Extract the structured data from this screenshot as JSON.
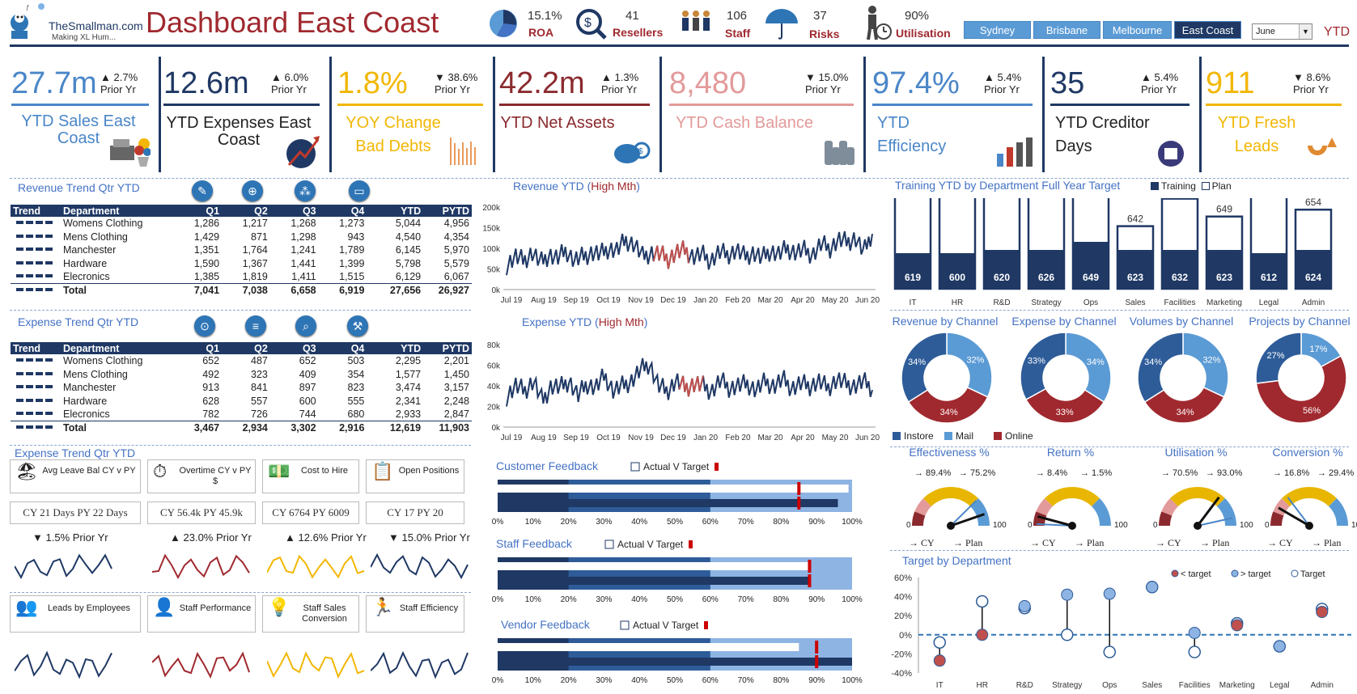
{
  "header": {
    "logo_brand": "TheSmallman.com",
    "logo_tag": "Making XL Hum...",
    "title": "Dashboard East Coast",
    "stats": [
      {
        "value": "15.1%",
        "label": "ROA",
        "icon": "pie-icon"
      },
      {
        "value": "41",
        "label": "Resellers",
        "icon": "magnifier-icon"
      },
      {
        "value": "106",
        "label": "Staff",
        "icon": "people-icon"
      },
      {
        "value": "37",
        "label": "Risks",
        "icon": "umbrella-icon"
      },
      {
        "value": "90%",
        "label": "Utilisation",
        "icon": "worker-clock-icon"
      }
    ],
    "regions": [
      "Sydney",
      "Brisbane",
      "Melbourne",
      "East Coast"
    ],
    "active_region": "East Coast",
    "month": "June",
    "period": "YTD"
  },
  "kpis": [
    {
      "value": "27.7m",
      "arrow": "▲",
      "change": "2.7%",
      "cmp": "Prior Yr",
      "label": "YTD Sales East Coast",
      "color": "#4a86c8",
      "icon": "cash-register-icon"
    },
    {
      "value": "12.6m",
      "arrow": "▲",
      "change": "6.0%",
      "cmp": "Prior Yr",
      "label": "YTD Expenses East Coast",
      "color": "#1f3864",
      "icon": "rocket-icon"
    },
    {
      "value": "1.8%",
      "arrow": "▼",
      "change": "38.6%",
      "cmp": "Prior Yr",
      "label": "YOY Change Bad Debts",
      "color": "#f2b705",
      "icon": "bars-icon"
    },
    {
      "value": "42.2m",
      "arrow": "▲",
      "change": "1.3%",
      "cmp": "Prior Yr",
      "label": "YTD Net Assets",
      "color": "#8b2a2e",
      "icon": "piggy-bank-icon"
    },
    {
      "value": "8,480",
      "arrow": "▼",
      "change": "15.0%",
      "cmp": "Prior Yr",
      "label": "YTD Cash Balance",
      "color": "#e39a9a",
      "icon": "coins-icon"
    },
    {
      "value": "97.4%",
      "arrow": "▲",
      "change": "5.4%",
      "cmp": "Prior Yr",
      "label": "YTD Efficiency",
      "color": "#4a86c8",
      "icon": "growth-people-icon"
    },
    {
      "value": "35",
      "arrow": "▲",
      "change": "5.4%",
      "cmp": "Prior Yr",
      "label": "YTD Creditor Days",
      "color": "#1f3864",
      "icon": "calendar-icon"
    },
    {
      "value": "911",
      "arrow": "▼",
      "change": "8.6%",
      "cmp": "Prior Yr",
      "label": "YTD Fresh Leads",
      "color": "#f2b705",
      "icon": "magnet-icon"
    }
  ],
  "revenue_table": {
    "title": "Revenue Trend Qtr YTD",
    "headers": [
      "Trend",
      "Department",
      "Q1",
      "Q2",
      "Q3",
      "Q4",
      "YTD",
      "PYTD"
    ],
    "rows": [
      [
        "Womens Clothing",
        "1,286",
        "1,217",
        "1,268",
        "1,273",
        "5,044",
        "4,956"
      ],
      [
        "Mens Clothing",
        "1,429",
        "871",
        "1,298",
        "943",
        "4,540",
        "4,354"
      ],
      [
        "Manchester",
        "1,351",
        "1,764",
        "1,241",
        "1,789",
        "6,145",
        "5,970"
      ],
      [
        "Hardware",
        "1,590",
        "1,367",
        "1,441",
        "1,399",
        "5,798",
        "5,579"
      ],
      [
        "Elecronics",
        "1,385",
        "1,819",
        "1,411",
        "1,515",
        "6,129",
        "6,067"
      ]
    ],
    "total": [
      "Total",
      "7,041",
      "7,038",
      "6,658",
      "6,919",
      "27,656",
      "26,927"
    ]
  },
  "expense_table": {
    "title": "Expense Trend Qtr YTD",
    "headers": [
      "Trend",
      "Department",
      "Q1",
      "Q2",
      "Q3",
      "Q4",
      "YTD",
      "PYTD"
    ],
    "rows": [
      [
        "Womens Clothing",
        "652",
        "487",
        "652",
        "503",
        "2,295",
        "2,201"
      ],
      [
        "Mens Clothing",
        "492",
        "323",
        "409",
        "354",
        "1,577",
        "1,450"
      ],
      [
        "Manchester",
        "913",
        "841",
        "897",
        "823",
        "3,474",
        "3,157"
      ],
      [
        "Hardware",
        "628",
        "557",
        "600",
        "555",
        "2,341",
        "2,248"
      ],
      [
        "Elecronics",
        "782",
        "726",
        "744",
        "680",
        "2,933",
        "2,847"
      ]
    ],
    "total": [
      "Total",
      "3,467",
      "2,934",
      "3,302",
      "2,916",
      "12,619",
      "11,903"
    ]
  },
  "revenue_ytd": {
    "title": "Revenue YTD",
    "title_hl": "High Mth",
    "yticks": [
      "200k",
      "150k",
      "100k",
      "50k",
      "0k"
    ],
    "xticks": [
      "Jul 19",
      "Aug 19",
      "Sep 19",
      "Oct 19",
      "Nov 19",
      "Dec 19",
      "Jan 20",
      "Feb 20",
      "Mar 20",
      "Apr 20",
      "May 20",
      "Jun 20"
    ]
  },
  "expense_ytd": {
    "title": "Expense YTD",
    "title_hl": "High Mth",
    "yticks": [
      "80k",
      "60k",
      "40k",
      "20k",
      "0k"
    ],
    "xticks": [
      "Jul 19",
      "Aug 19",
      "Sep 19",
      "Oct 19",
      "Nov 19",
      "Dec 19",
      "Jan 20",
      "Feb 20",
      "Mar 20",
      "Apr 20",
      "May 20",
      "Jun 20"
    ]
  },
  "training": {
    "title": "Training YTD by Department Full Year Target",
    "legend": [
      "Training",
      "Plan"
    ]
  },
  "channels": {
    "titles": [
      "Revenue by Channel",
      "Expense by Channel",
      "Volumes by Channel",
      "Projects by Channel"
    ],
    "legend": [
      "Instore",
      "Mail",
      "Online"
    ]
  },
  "gauges": [
    {
      "title": "Effectiveness %",
      "cy": "89.4%",
      "plan": "75.2%"
    },
    {
      "title": "Return %",
      "cy": "8.4%",
      "plan": "1.5%"
    },
    {
      "title": "Utilisation %",
      "cy": "70.5%",
      "plan": "93.0%"
    },
    {
      "title": "Conversion %",
      "cy": "16.8%",
      "plan": "29.4%"
    }
  ],
  "gauge_legend": {
    "cy": "CY",
    "plan": "Plan",
    "min": "0",
    "max": "100"
  },
  "expense_tiles": {
    "title": "Expense Trend Qtr YTD",
    "tiles": [
      {
        "label": "Avg Leave Bal CY v PY",
        "icon": "beach-icon",
        "cy": "CY 21 Days",
        "py": "PY 22 Days",
        "arrow": "▼",
        "change": "1.5% Prior Yr",
        "color": "#1f3864"
      },
      {
        "label": "Overtime CY v PY $",
        "icon": "stopwatch-icon",
        "cy": "CY 56.4k",
        "py": "PY 45.9k",
        "arrow": "▲",
        "change": "23.0% Prior Yr",
        "color": "#a0292f"
      },
      {
        "label": "Cost to Hire",
        "icon": "money-man-icon",
        "cy": "CY 6764",
        "py": "PY 6009",
        "arrow": "▲",
        "change": "12.6% Prior Yr",
        "color": "#f2b705"
      },
      {
        "label": "Open Positions",
        "icon": "cv-icon",
        "cy": "CY 17",
        "py": "PY 20",
        "arrow": "▼",
        "change": "15.0% Prior Yr",
        "color": "#1f3864"
      }
    ]
  },
  "staff_tiles": [
    {
      "label": "Leads by Employees",
      "icon": "leads-icon",
      "color": "#1f3864"
    },
    {
      "label": "Staff Performance",
      "icon": "performance-icon",
      "color": "#a0292f"
    },
    {
      "label": "Staff Sales Conversion",
      "icon": "bulb-icon",
      "color": "#f2b705"
    },
    {
      "label": "Staff Efficiency",
      "icon": "efficiency-icon",
      "color": "#1f3864"
    }
  ],
  "feedback": [
    {
      "title": "Customer Feedback",
      "legend": "Actual V Target"
    },
    {
      "title": "Staff Feedback",
      "legend": "Actual V Target"
    },
    {
      "title": "Vendor Feedback",
      "legend": "Actual V Target"
    }
  ],
  "feedback_ticks": [
    "0%",
    "10%",
    "20%",
    "30%",
    "40%",
    "50%",
    "60%",
    "70%",
    "80%",
    "90%",
    "100%"
  ],
  "target": {
    "title": "Target by Department",
    "legend": [
      "< target",
      "> target",
      "Target"
    ],
    "yticks": [
      "60%",
      "40%",
      "20%",
      "0%",
      "-20%",
      "-40%"
    ]
  },
  "chart_data": [
    {
      "type": "bar",
      "title": "Training YTD by Department Full Year Target",
      "categories": [
        "IT",
        "HR",
        "R&D",
        "Strategy",
        "Ops",
        "Sales",
        "Facilities",
        "Marketing",
        "Legal",
        "Admin"
      ],
      "series": [
        {
          "name": "Training",
          "values": [
            619,
            600,
            620,
            626,
            649,
            623,
            632,
            623,
            612,
            624
          ]
        },
        {
          "name": "Plan",
          "values": [
            688,
            677,
            683,
            691,
            687,
            642,
            662,
            649,
            687,
            654
          ]
        }
      ],
      "ylim": [
        0,
        700
      ]
    },
    {
      "type": "pie",
      "title": "Revenue by Channel",
      "categories": [
        "Instore",
        "Mail",
        "Online"
      ],
      "values": [
        34,
        32,
        34
      ]
    },
    {
      "type": "pie",
      "title": "Expense by Channel",
      "categories": [
        "Instore",
        "Mail",
        "Online"
      ],
      "values": [
        33,
        34,
        33
      ]
    },
    {
      "type": "pie",
      "title": "Volumes by Channel",
      "categories": [
        "Instore",
        "Mail",
        "Online"
      ],
      "values": [
        34,
        32,
        34
      ]
    },
    {
      "type": "pie",
      "title": "Projects by Channel",
      "categories": [
        "Instore",
        "Mail",
        "Online"
      ],
      "values": [
        27,
        17,
        56
      ]
    },
    {
      "type": "bar",
      "title": "Customer Feedback",
      "bands": [
        20,
        60,
        100
      ],
      "actual": [
        99,
        96
      ],
      "target": [
        85,
        85
      ],
      "xlim": [
        0,
        100
      ]
    },
    {
      "type": "bar",
      "title": "Staff Feedback",
      "bands": [
        20,
        60,
        100
      ],
      "actual": [
        88,
        88
      ],
      "target": [
        88,
        88
      ],
      "xlim": [
        0,
        100
      ]
    },
    {
      "type": "bar",
      "title": "Vendor Feedback",
      "bands": [
        20,
        60,
        100
      ],
      "actual": [
        85,
        100
      ],
      "target": [
        90,
        90
      ],
      "xlim": [
        0,
        100
      ]
    },
    {
      "type": "scatter",
      "title": "Target by Department",
      "categories": [
        "IT",
        "HR",
        "R&D",
        "Strategy",
        "Ops",
        "Sales",
        "Facilities",
        "Marketing",
        "Legal",
        "Admin"
      ],
      "actual": [
        -27,
        0,
        30,
        42,
        43,
        50,
        2,
        10,
        -12,
        24
      ],
      "target": [
        -8,
        35,
        28,
        0,
        -18,
        50,
        -18,
        12,
        -12,
        27
      ],
      "ylim": [
        -40,
        60
      ]
    },
    {
      "type": "line",
      "title": "Revenue YTD",
      "y": [
        60,
        80,
        70,
        90,
        65,
        85,
        75,
        95,
        70,
        80,
        90,
        85,
        100,
        95,
        120,
        110,
        80,
        90,
        85,
        75,
        90,
        95,
        80,
        85,
        70,
        90,
        85,
        95,
        80,
        90,
        75,
        95,
        85,
        100,
        90,
        95,
        85,
        110,
        100,
        120,
        115,
        125,
        90,
        140
      ],
      "ylim": [
        0,
        200
      ]
    },
    {
      "type": "line",
      "title": "Expense YTD",
      "y": [
        30,
        40,
        35,
        45,
        25,
        40,
        38,
        45,
        30,
        42,
        38,
        50,
        35,
        40,
        45,
        55,
        62,
        40,
        35,
        45,
        38,
        42,
        40,
        35,
        45,
        38,
        40,
        42,
        36,
        44,
        40,
        46,
        38,
        42,
        40,
        44,
        38,
        46,
        42,
        40,
        44,
        38
      ],
      "ylim": [
        0,
        80
      ]
    }
  ]
}
